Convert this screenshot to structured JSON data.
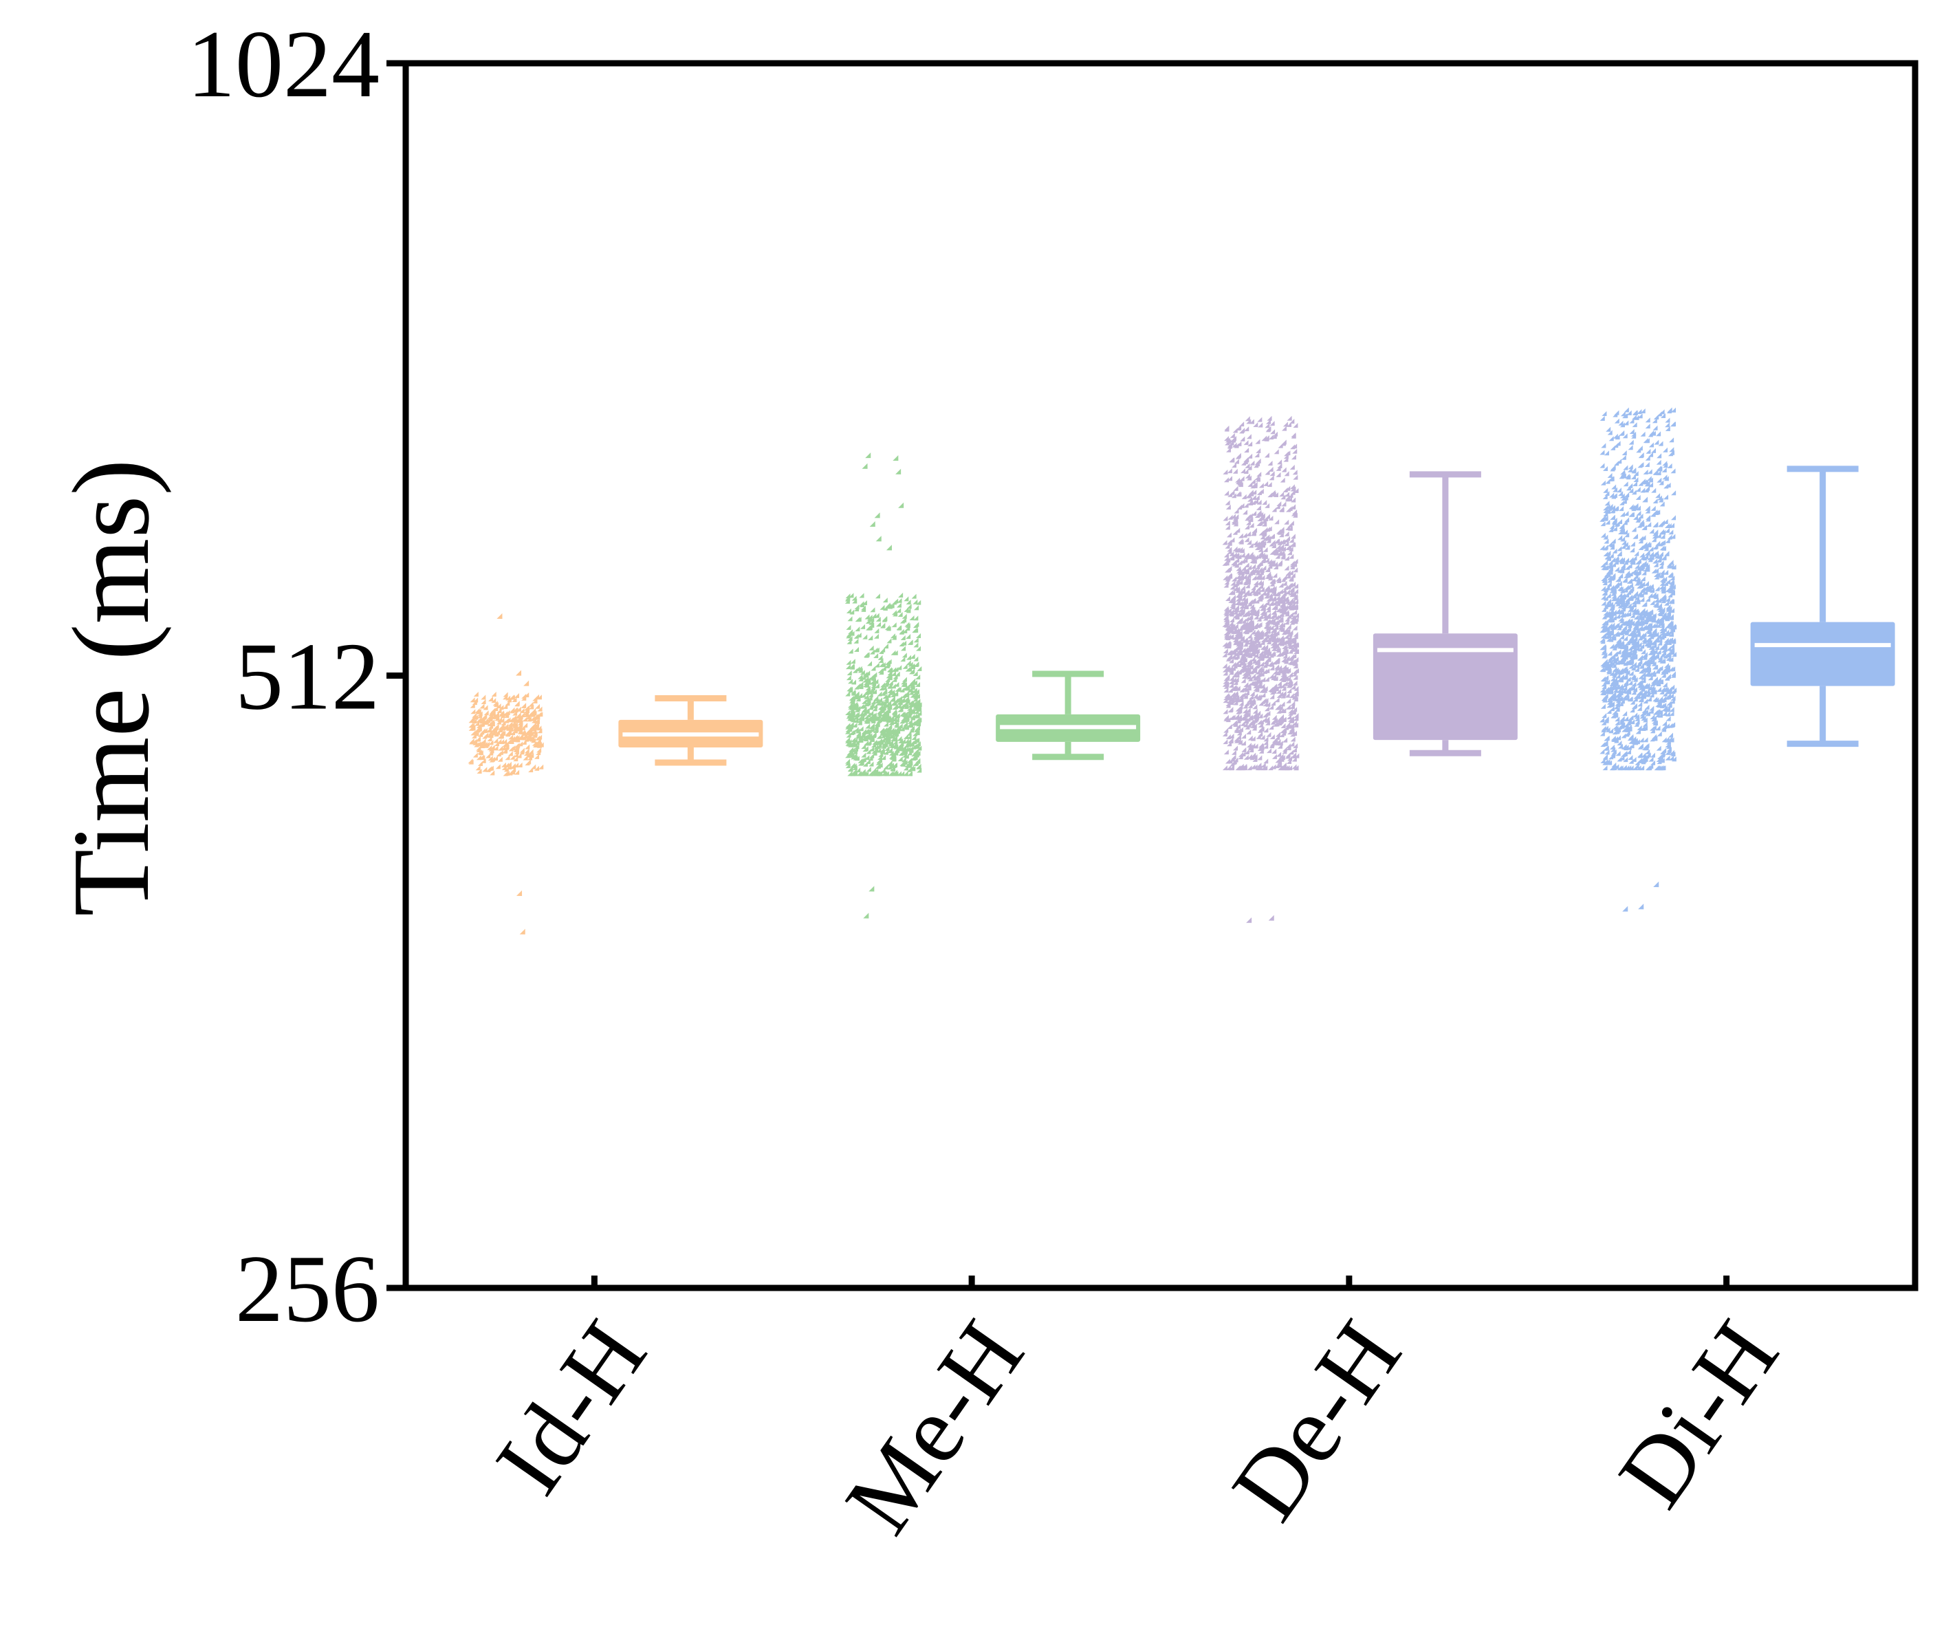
{
  "chart_data": {
    "type": "box",
    "ylabel": "Time (ms)",
    "yscale": "log2",
    "ylim": [
      256,
      1024
    ],
    "yticks": [
      256,
      512,
      1024
    ],
    "ytick_labels": [
      "256",
      "512",
      "1024"
    ],
    "categories": [
      "Id-H",
      "Me-H",
      "De-H",
      "Di-H"
    ],
    "grid": false,
    "series": [
      {
        "category": "Id-H",
        "color": "#FDC793",
        "box": {
          "whisker_low": 464,
          "q1": 472,
          "median": 479,
          "q3": 487,
          "whisker_high": 499
        },
        "points": {
          "count": 400,
          "core_low": 457,
          "core_high": 500,
          "outliers": [
            546,
            399,
            382,
            506,
            512
          ]
        }
      },
      {
        "category": "Me-H",
        "color": "#9ED69B",
        "box": {
          "whisker_low": 467,
          "q1": 475,
          "median": 483,
          "q3": 490,
          "whisker_high": 513
        },
        "points": {
          "count": 900,
          "core_low": 457,
          "core_high": 560,
          "outliers": [
            401,
            389,
            655,
            653,
            647,
            643,
            619,
            612,
            606,
            596,
            590
          ]
        }
      },
      {
        "category": "De-H",
        "color": "#C2B3D8",
        "box": {
          "whisker_low": 469,
          "q1": 476,
          "median": 527,
          "q3": 537,
          "whisker_high": 643
        },
        "points": {
          "count": 1600,
          "core_low": 460,
          "core_high": 685,
          "outliers": [
            388,
            387,
            608
          ]
        }
      },
      {
        "category": "Di-H",
        "color": "#9DBDF0",
        "box": {
          "whisker_low": 474,
          "q1": 506,
          "median": 530,
          "q3": 544,
          "whisker_high": 647
        },
        "points": {
          "count": 1600,
          "core_low": 460,
          "core_high": 690,
          "outliers": [
            403,
            392,
            393,
            623
          ]
        }
      }
    ]
  }
}
